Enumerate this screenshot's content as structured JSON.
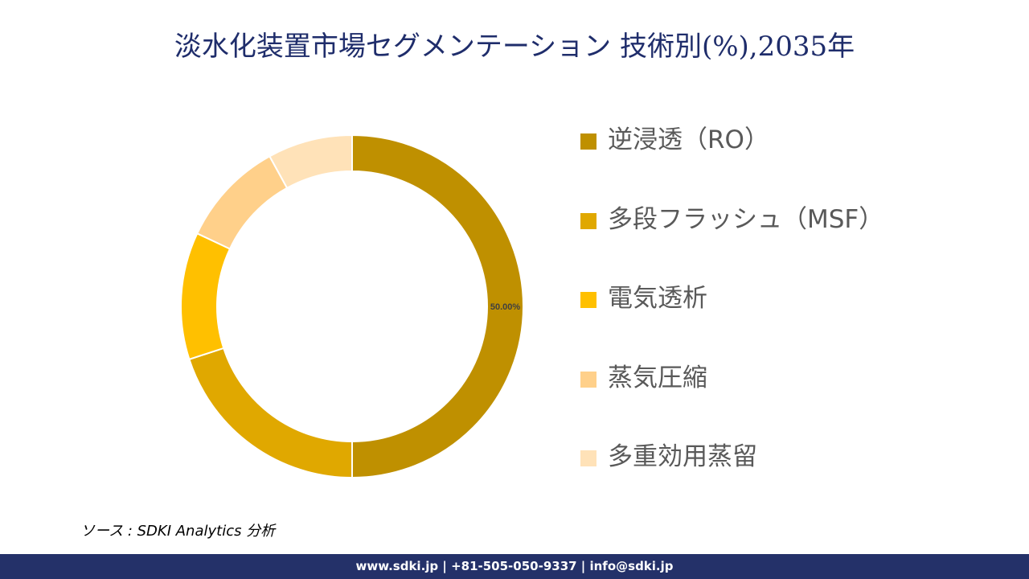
{
  "title": "淡水化装置市場セグメンテーション 技術別(%),2035年",
  "chart_data": {
    "type": "pie",
    "subtype": "donut",
    "title": "淡水化装置市場セグメンテーション 技術別(%),2035年",
    "categories": [
      "逆浸透（RO）",
      "多段フラッシュ（MSF）",
      "電気透析",
      "蒸気圧縮",
      "多重効用蒸留"
    ],
    "values": [
      50,
      20,
      12,
      10,
      8
    ],
    "colors": [
      "#BF9000",
      "#E0A800",
      "#FFC000",
      "#FFD08A",
      "#FFE2B8"
    ],
    "data_labels": [
      "50.00%"
    ],
    "legend_position": "right"
  },
  "source": "ソース : SDKI Analytics  分析",
  "footer": "www.sdki.jp | +81-505-050-9337 | info@sdki.jp"
}
